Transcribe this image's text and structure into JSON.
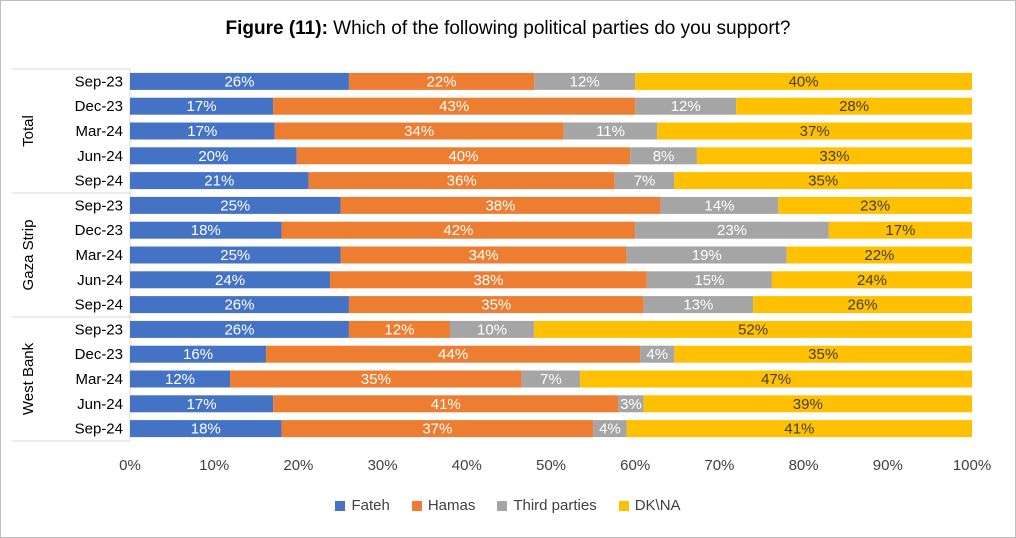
{
  "title": {
    "prefix": "Figure (11):",
    "text": " Which of the following political parties do you support?"
  },
  "chart_data": {
    "type": "bar",
    "orientation": "horizontal",
    "stacked": true,
    "title": "Figure (11): Which of the following political parties do you support?",
    "groups": [
      {
        "name": "Total",
        "rows": [
          {
            "label": "Sep-23",
            "values": [
              26,
              22,
              12,
              40
            ]
          },
          {
            "label": "Dec-23",
            "values": [
              17,
              43,
              12,
              28
            ]
          },
          {
            "label": "Mar-24",
            "values": [
              17,
              34,
              11,
              37
            ]
          },
          {
            "label": "Jun-24",
            "values": [
              20,
              40,
              8,
              33
            ]
          },
          {
            "label": "Sep-24",
            "values": [
              21,
              36,
              7,
              35
            ]
          }
        ]
      },
      {
        "name": "Gaza Strip",
        "rows": [
          {
            "label": "Sep-23",
            "values": [
              25,
              38,
              14,
              23
            ]
          },
          {
            "label": "Dec-23",
            "values": [
              18,
              42,
              23,
              17
            ]
          },
          {
            "label": "Mar-24",
            "values": [
              25,
              34,
              19,
              22
            ]
          },
          {
            "label": "Jun-24",
            "values": [
              24,
              38,
              15,
              24
            ]
          },
          {
            "label": "Sep-24",
            "values": [
              26,
              35,
              13,
              26
            ]
          }
        ]
      },
      {
        "name": "West Bank",
        "rows": [
          {
            "label": "Sep-23",
            "values": [
              26,
              12,
              10,
              52
            ]
          },
          {
            "label": "Dec-23",
            "values": [
              16,
              44,
              4,
              35
            ]
          },
          {
            "label": "Mar-24",
            "values": [
              12,
              35,
              7,
              47
            ]
          },
          {
            "label": "Jun-24",
            "values": [
              17,
              41,
              3,
              39
            ]
          },
          {
            "label": "Sep-24",
            "values": [
              18,
              37,
              4,
              41
            ]
          }
        ]
      }
    ],
    "series": [
      {
        "name": "Fateh",
        "color": "#4472c4",
        "text_color": "#ffffff"
      },
      {
        "name": "Hamas",
        "color": "#ed7d31",
        "text_color": "#ffffff"
      },
      {
        "name": "Third parties",
        "color": "#a5a5a5",
        "text_color": "#ffffff"
      },
      {
        "name": "DK\\NA",
        "color": "#ffc000",
        "text_color": "#404040"
      }
    ],
    "xlim": [
      0,
      100
    ],
    "x_ticks": [
      "0%",
      "10%",
      "20%",
      "30%",
      "40%",
      "50%",
      "60%",
      "70%",
      "80%",
      "90%",
      "100%"
    ],
    "grid": false,
    "legend": "bottom"
  }
}
